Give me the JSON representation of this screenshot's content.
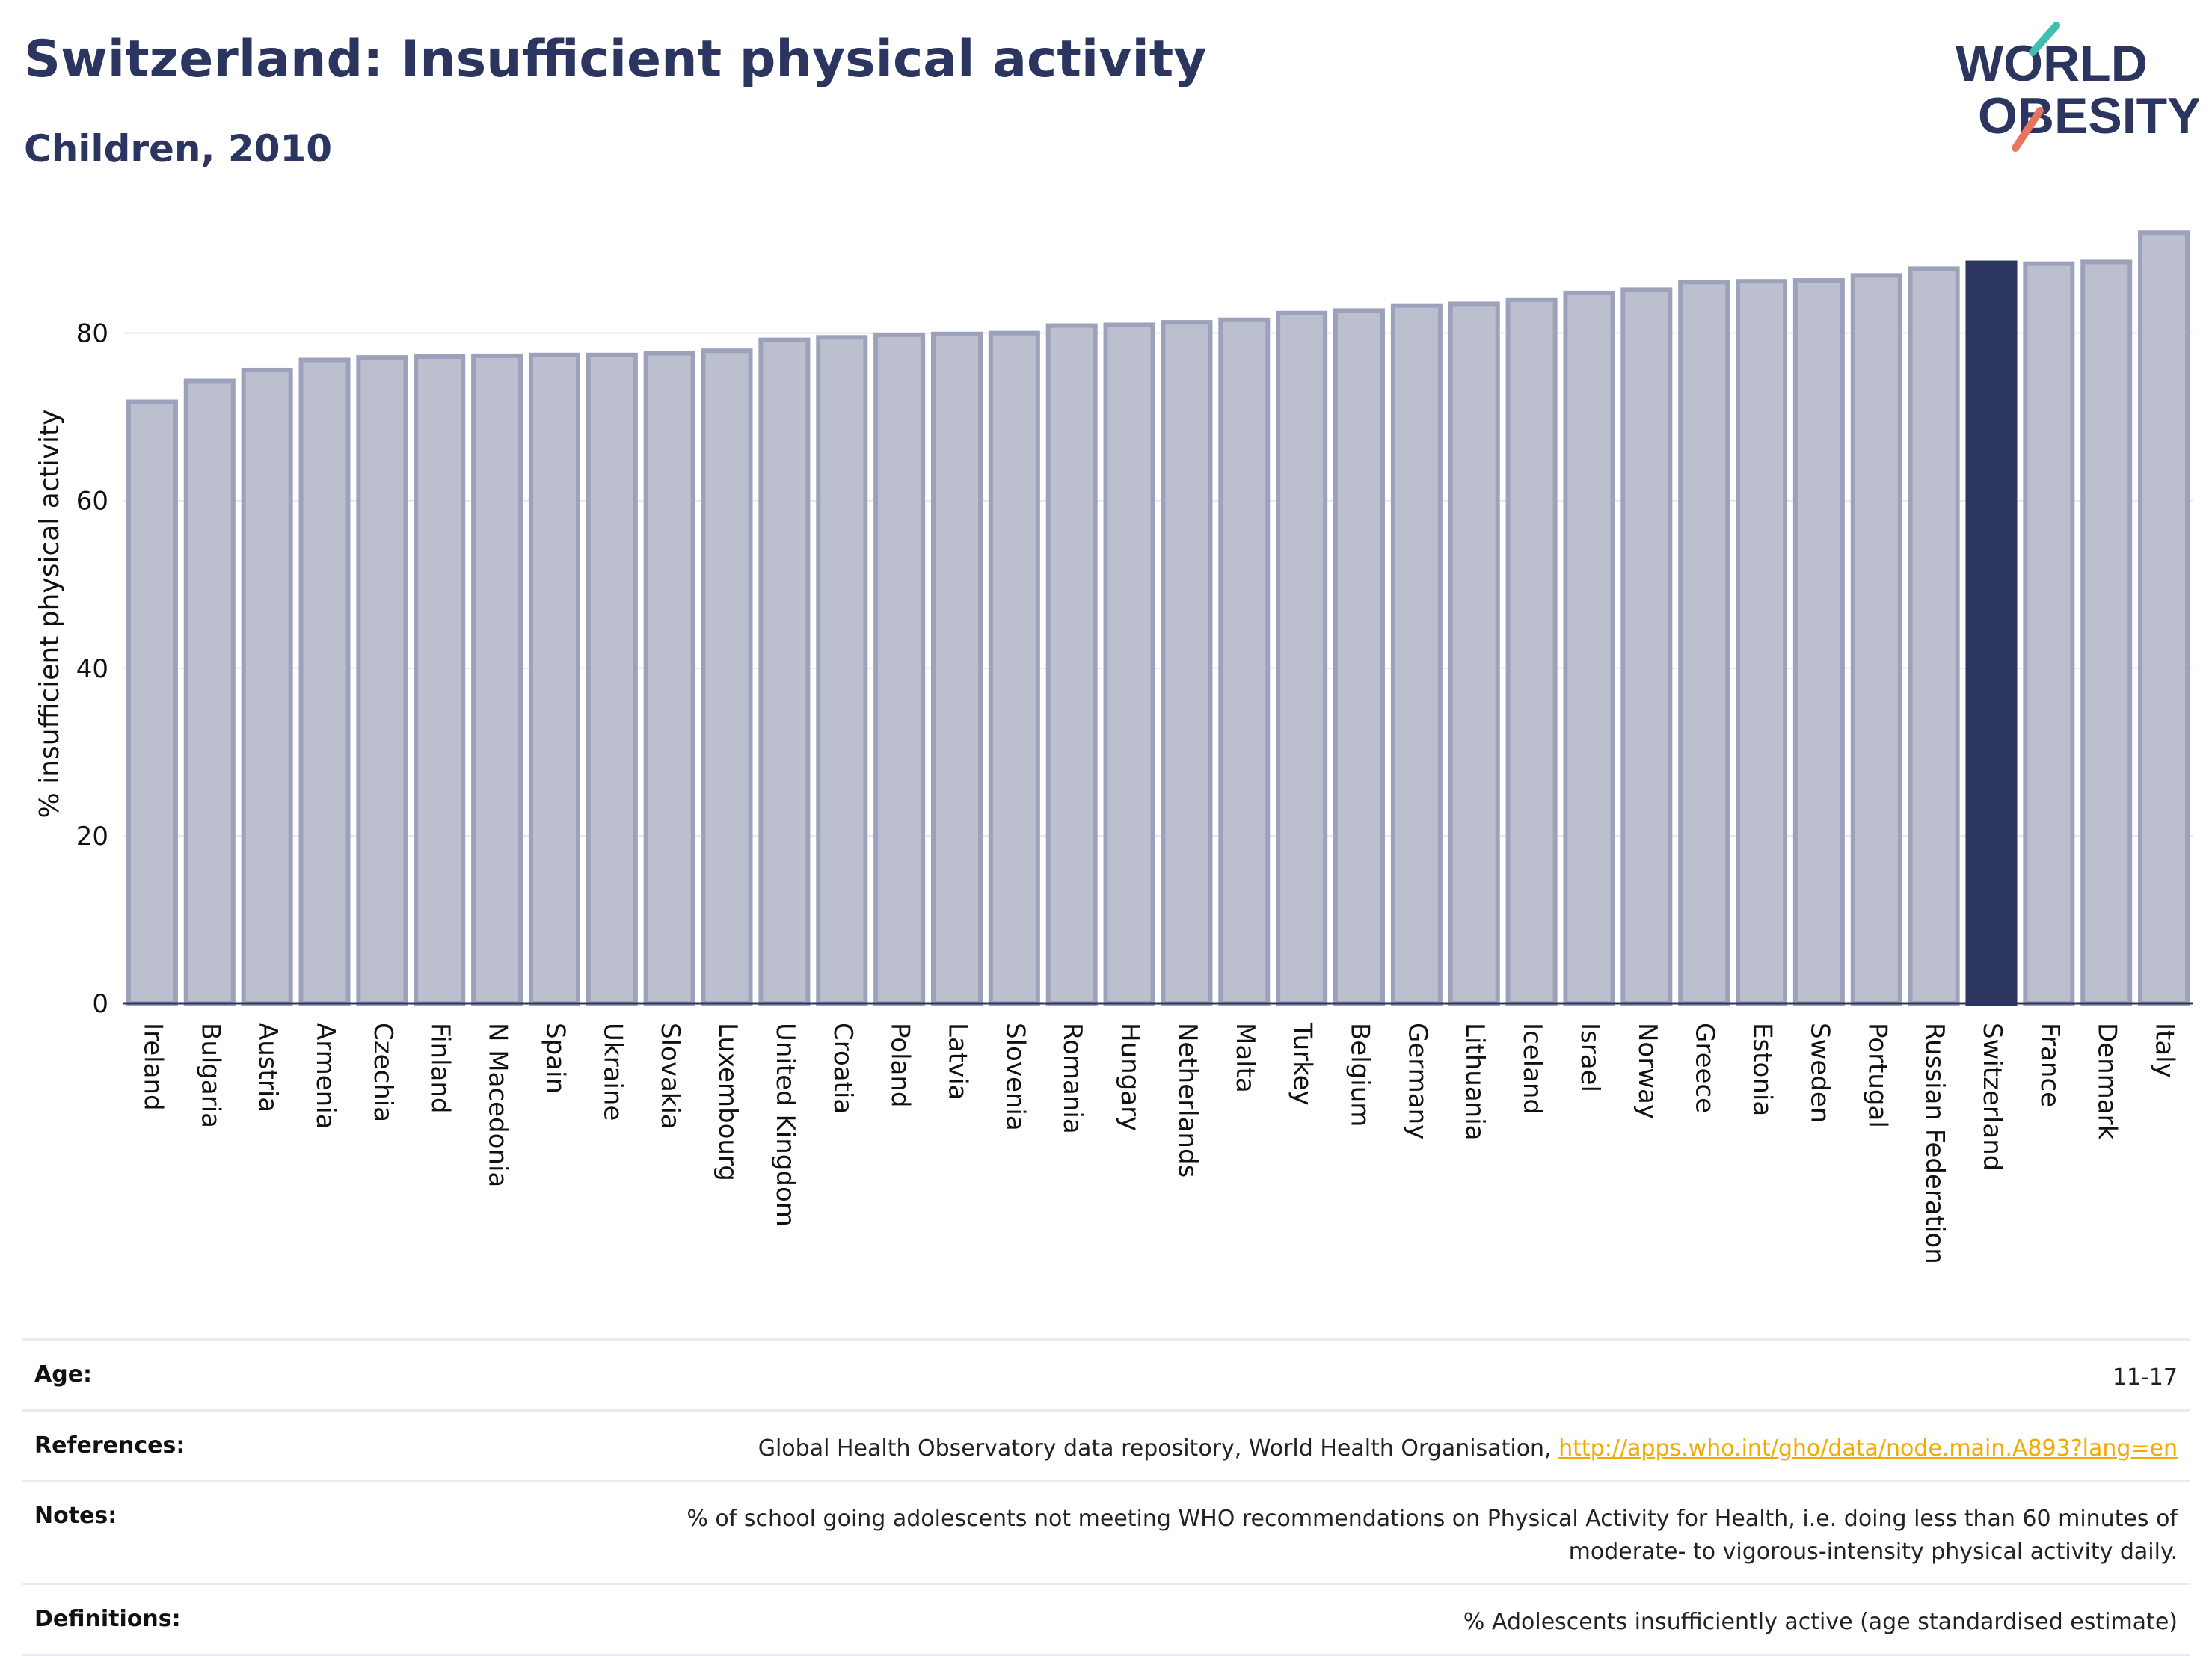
{
  "header": {
    "title": "Switzerland: Insufficient physical activity",
    "subtitle": "Children, 2010",
    "logo_line1": "WORLD",
    "logo_line2": "OBESITY"
  },
  "chart_data": {
    "type": "bar",
    "title": "",
    "xlabel": "",
    "ylabel": "% insufficient physical activity",
    "ylim": [
      0,
      93
    ],
    "yticks": [
      0,
      20,
      40,
      60,
      80
    ],
    "grid": true,
    "highlight": "Switzerland",
    "colors": {
      "bar": "#bcc0ce",
      "bar_edge": "#9ca2bb",
      "highlight": "#2b3560"
    },
    "categories": [
      "Ireland",
      "Bulgaria",
      "Austria",
      "Armenia",
      "Czechia",
      "Finland",
      "N Macedonia",
      "Spain",
      "Ukraine",
      "Slovakia",
      "Luxembourg",
      "United Kingdom",
      "Croatia",
      "Poland",
      "Latvia",
      "Slovenia",
      "Romania",
      "Hungary",
      "Netherlands",
      "Malta",
      "Turkey",
      "Belgium",
      "Germany",
      "Lithuania",
      "Iceland",
      "Israel",
      "Norway",
      "Greece",
      "Estonia",
      "Sweden",
      "Portugal",
      "Russian Federation",
      "Switzerland",
      "France",
      "Denmark",
      "Italy"
    ],
    "values": [
      71.8,
      74.3,
      75.6,
      76.8,
      77.1,
      77.2,
      77.3,
      77.4,
      77.4,
      77.6,
      77.9,
      79.2,
      79.5,
      79.8,
      79.9,
      80.0,
      80.9,
      81.0,
      81.3,
      81.6,
      82.4,
      82.7,
      83.3,
      83.5,
      84.0,
      84.8,
      85.2,
      86.1,
      86.2,
      86.3,
      86.9,
      87.7,
      88.4,
      88.3,
      88.5,
      92.0
    ]
  },
  "details": {
    "age": {
      "label": "Age:",
      "value": "11-17"
    },
    "references": {
      "label": "References:",
      "text": "Global Health Observatory data repository, World Health Organisation, ",
      "link": "http://apps.who.int/gho/data/node.main.A893?lang=en"
    },
    "notes": {
      "label": "Notes:",
      "line1": "% of school going adolescents not meeting WHO recommendations on Physical Activity for Health, i.e. doing less than 60 minutes of",
      "line2": "moderate- to vigorous-intensity physical activity daily."
    },
    "definitions": {
      "label": "Definitions:",
      "value": "% Adolescents insufficiently active (age standardised estimate)"
    }
  }
}
